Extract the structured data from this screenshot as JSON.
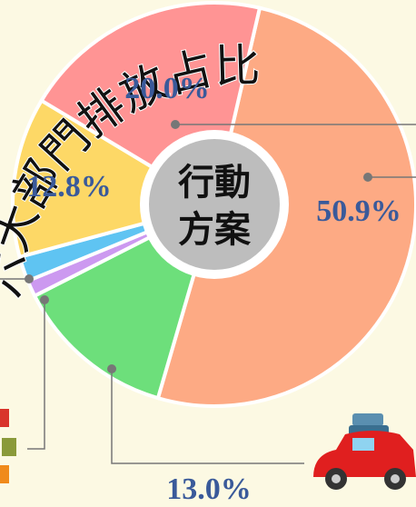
{
  "chart_data": {
    "type": "donut",
    "title": "六大部門排放占比",
    "center_label": [
      "行動",
      "方案"
    ],
    "categories": [
      null,
      null,
      null,
      null,
      null,
      null
    ],
    "values": [
      50.9,
      13.0,
      1.3,
      2.0,
      12.8,
      20.0
    ],
    "value_labels": [
      "50.9%",
      "13.0%",
      null,
      null,
      "12.8%",
      "20.0%"
    ],
    "colors": [
      "#fdaa84",
      "#6ddf7b",
      "#cc99f0",
      "#5fc4f2",
      "#fdd866",
      "#ff9494"
    ]
  }
}
